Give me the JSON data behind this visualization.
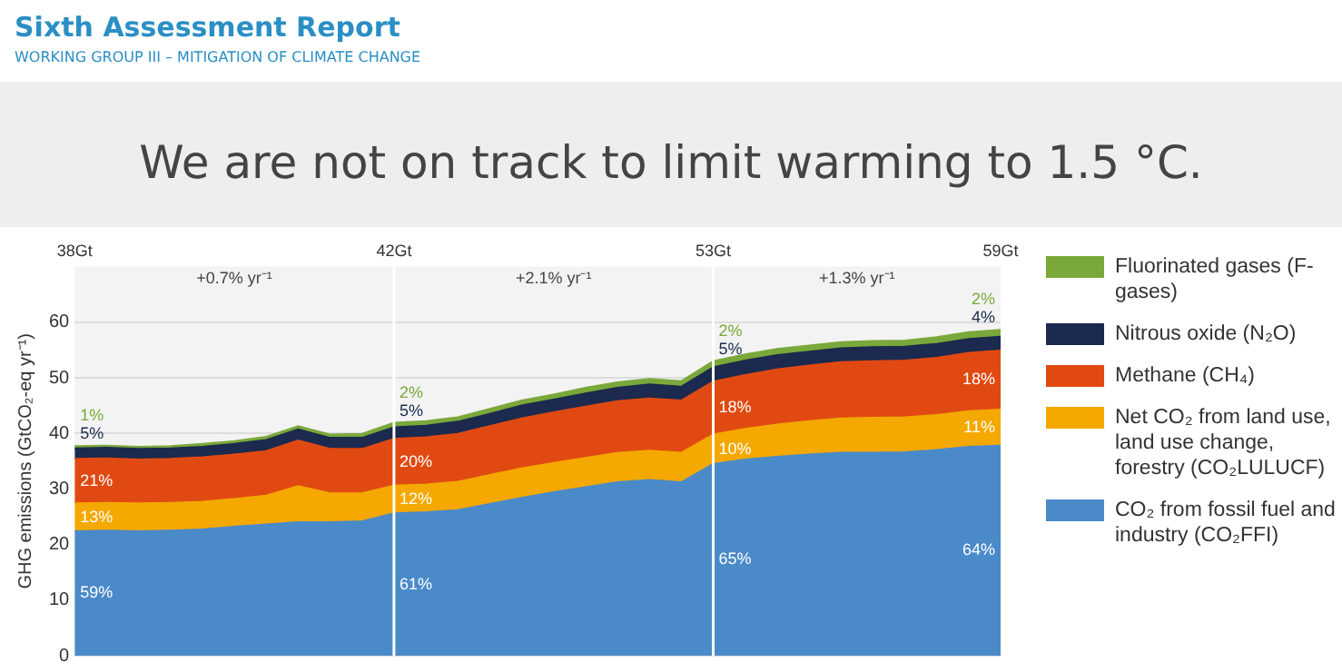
{
  "chart_data": {
    "type": "area",
    "title": "We are not on track to limit warming to 1.5 °C.",
    "ylabel": "GHG emissions (GtCO₂-eq yr⁻¹)",
    "categories": [
      "38Gt",
      null,
      null,
      null,
      null,
      null,
      null,
      null,
      null,
      null,
      "42Gt",
      null,
      null,
      null,
      null,
      null,
      null,
      null,
      null,
      null,
      "53Gt",
      null,
      null,
      null,
      null,
      null,
      null,
      null,
      null,
      "59Gt"
    ],
    "ylim": [
      0,
      70
    ],
    "yticks": [
      0,
      10,
      20,
      30,
      40,
      50,
      60
    ],
    "stacked": true,
    "grid": true,
    "legend": "right",
    "series": [
      {
        "name": "CO₂ from fossil fuel and industry (CO₂FFI)",
        "color": "#4a8ac9",
        "values": [
          22.4,
          22.5,
          22.4,
          22.5,
          22.7,
          23.2,
          23.6,
          24.0,
          24.0,
          24.2,
          25.6,
          25.8,
          26.2,
          27.3,
          28.4,
          29.4,
          30.3,
          31.2,
          31.6,
          31.2,
          34.5,
          35.3,
          35.8,
          36.2,
          36.5,
          36.5,
          36.6,
          37.0,
          37.6,
          37.8
        ]
      },
      {
        "name": "Net CO₂ from land use, land use change, forestry (CO₂LULUCF)",
        "color": "#f5a800",
        "values": [
          5.0,
          5.0,
          5.0,
          5.0,
          5.0,
          5.0,
          5.2,
          6.5,
          5.2,
          5.0,
          5.0,
          5.0,
          5.1,
          5.2,
          5.3,
          5.3,
          5.3,
          5.3,
          5.3,
          5.3,
          5.3,
          5.5,
          5.8,
          6.0,
          6.2,
          6.3,
          6.3,
          6.3,
          6.4,
          6.5
        ]
      },
      {
        "name": "Methane (CH₄)",
        "color": "#e04a12",
        "values": [
          8.0,
          8.0,
          7.9,
          7.9,
          8.0,
          8.0,
          8.0,
          8.2,
          8.0,
          8.0,
          8.4,
          8.5,
          8.6,
          8.8,
          9.0,
          9.1,
          9.2,
          9.3,
          9.4,
          9.4,
          9.5,
          9.7,
          9.9,
          10.0,
          10.1,
          10.2,
          10.2,
          10.3,
          10.5,
          10.6
        ]
      },
      {
        "name": "Nitrous oxide (N₂O)",
        "color": "#1b2a4e",
        "values": [
          1.9,
          1.9,
          1.9,
          1.9,
          1.9,
          1.9,
          2.0,
          2.0,
          2.0,
          2.0,
          2.1,
          2.1,
          2.2,
          2.2,
          2.3,
          2.3,
          2.4,
          2.4,
          2.5,
          2.5,
          2.6,
          2.6,
          2.6,
          2.5,
          2.5,
          2.5,
          2.5,
          2.5,
          2.5,
          2.5
        ]
      },
      {
        "name": "Fluorinated gases (F-gases)",
        "color": "#7aa83a",
        "values": [
          0.4,
          0.4,
          0.4,
          0.4,
          0.5,
          0.5,
          0.6,
          0.6,
          0.6,
          0.7,
          0.8,
          0.8,
          0.8,
          0.9,
          0.9,
          0.9,
          1.0,
          1.0,
          1.0,
          1.0,
          1.1,
          1.1,
          1.1,
          1.1,
          1.1,
          1.1,
          1.1,
          1.2,
          1.2,
          1.2
        ]
      }
    ],
    "annotations": [
      "Sixth Assessment Report",
      "WORKING GROUP III – MITIGATION OF CLIMATE CHANGE",
      "+0.7% yr⁻¹",
      "+2.1% yr⁻¹",
      "+1.3% yr⁻¹",
      "59%",
      "13%",
      "21%",
      "5%",
      "1%",
      "61%",
      "12%",
      "20%",
      "5%",
      "2%",
      "65%",
      "10%",
      "18%",
      "5%",
      "2%",
      "64%",
      "11%",
      "18%",
      "4%",
      "2%"
    ]
  }
}
